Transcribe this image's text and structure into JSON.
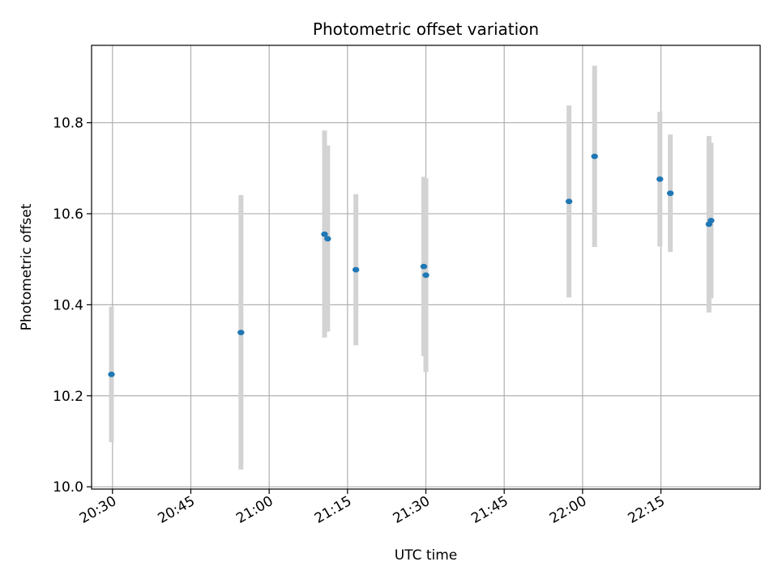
{
  "chart_data": {
    "type": "scatter",
    "title": "Photometric offset variation",
    "xlabel": "UTC time",
    "ylabel": "Photometric offset",
    "grid": true,
    "xlim_minutes": [
      1226,
      1354
    ],
    "ylim": [
      9.995,
      10.97
    ],
    "x_ticks": [
      {
        "minute": 1230,
        "label": "20:30"
      },
      {
        "minute": 1245,
        "label": "20:45"
      },
      {
        "minute": 1260,
        "label": "21:00"
      },
      {
        "minute": 1275,
        "label": "21:15"
      },
      {
        "minute": 1290,
        "label": "21:30"
      },
      {
        "minute": 1305,
        "label": "21:45"
      },
      {
        "minute": 1320,
        "label": "22:00"
      },
      {
        "minute": 1335,
        "label": "22:15"
      }
    ],
    "y_ticks": [
      {
        "value": 10.0,
        "label": "10.0"
      },
      {
        "value": 10.2,
        "label": "10.2"
      },
      {
        "value": 10.4,
        "label": "10.4"
      },
      {
        "value": 10.6,
        "label": "10.6"
      },
      {
        "value": 10.8,
        "label": "10.8"
      }
    ],
    "series": [
      {
        "name": "Photometric offset",
        "color": "#1f77b4",
        "errorbar_color": "#d3d3d3",
        "points": [
          {
            "x": 1229.8,
            "y": 10.247,
            "low": 10.098,
            "high": 10.396
          },
          {
            "x": 1254.6,
            "y": 10.339,
            "low": 10.038,
            "high": 10.641
          },
          {
            "x": 1270.6,
            "y": 10.555,
            "low": 10.328,
            "high": 10.783
          },
          {
            "x": 1271.2,
            "y": 10.545,
            "low": 10.341,
            "high": 10.75
          },
          {
            "x": 1276.6,
            "y": 10.477,
            "low": 10.311,
            "high": 10.643
          },
          {
            "x": 1289.6,
            "y": 10.484,
            "low": 10.287,
            "high": 10.681
          },
          {
            "x": 1290.0,
            "y": 10.465,
            "low": 10.252,
            "high": 10.678
          },
          {
            "x": 1317.4,
            "y": 10.627,
            "low": 10.416,
            "high": 10.838
          },
          {
            "x": 1322.3,
            "y": 10.726,
            "low": 10.527,
            "high": 10.925
          },
          {
            "x": 1334.8,
            "y": 10.676,
            "low": 10.528,
            "high": 10.824
          },
          {
            "x": 1336.8,
            "y": 10.645,
            "low": 10.516,
            "high": 10.774
          },
          {
            "x": 1344.2,
            "y": 10.577,
            "low": 10.383,
            "high": 10.771
          },
          {
            "x": 1344.6,
            "y": 10.585,
            "low": 10.414,
            "high": 10.756
          }
        ]
      }
    ]
  }
}
